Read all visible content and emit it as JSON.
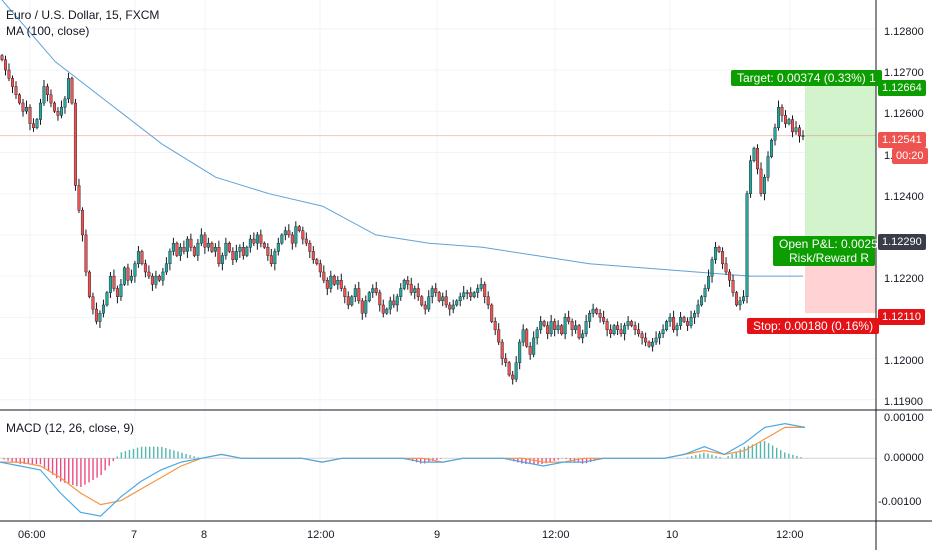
{
  "header": {
    "symbol_title": "Euro / U.S. Dollar, 15, FXCM",
    "ma_label": "MA (100, close)"
  },
  "macd": {
    "label": "MACD (12, 26, close, 9)",
    "yticks": [
      "0.00100",
      "0.00000",
      "-0.00100"
    ]
  },
  "position": {
    "target_label": "Target: 0.00374 (0.33%) 1",
    "stop_label": "Stop: 0.00180 (0.16%)",
    "pnl_label": "Open P&L: 0.0025",
    "rr_label": "Risk/Reward R"
  },
  "price_scale": {
    "labels": [
      "1.12800",
      "1.12700",
      "1.12600",
      "1.12500",
      "1.12400",
      "1.12200",
      "1.12000",
      "1.11900"
    ],
    "tags": {
      "target": "1.12664",
      "last": "1.12541",
      "countdown": "00:20",
      "entry": "1.12290",
      "stop": "1.12110"
    }
  },
  "colors": {
    "up": "#26a69a",
    "down": "#ef5350",
    "ma": "#5fa2d6",
    "target": "#0c9e00",
    "stop": "#e41216",
    "entry": "#3a3d47",
    "macd_line": "#4aa8e8",
    "signal_line": "#f59642"
  },
  "chart_data": [
    {
      "type": "candlestick",
      "title": "Euro / U.S. Dollar, 15, FXCM",
      "x_ticks": [
        "06:00",
        "7",
        "8",
        "12:00",
        "9",
        "12:00",
        "10",
        "12:00"
      ],
      "ylim": [
        1.1188,
        1.1287
      ],
      "series_ma_name": "MA (100, close)",
      "closes": [
        1.12725,
        1.127,
        1.1268,
        1.1266,
        1.1264,
        1.1262,
        1.126,
        1.1261,
        1.1257,
        1.1256,
        1.1258,
        1.1262,
        1.1266,
        1.1264,
        1.1262,
        1.126,
        1.1259,
        1.1261,
        1.1263,
        1.1268,
        1.1262,
        1.1242,
        1.1236,
        1.123,
        1.1221,
        1.1215,
        1.1212,
        1.1209,
        1.1211,
        1.1213,
        1.1216,
        1.122,
        1.1217,
        1.1215,
        1.1218,
        1.1222,
        1.1219,
        1.122,
        1.1223,
        1.1226,
        1.1223,
        1.1221,
        1.122,
        1.1218,
        1.122,
        1.1219,
        1.1221,
        1.1223,
        1.1226,
        1.1228,
        1.1225,
        1.1227,
        1.1226,
        1.1229,
        1.1227,
        1.1225,
        1.1228,
        1.123,
        1.1227,
        1.1228,
        1.1226,
        1.1227,
        1.1223,
        1.1225,
        1.1228,
        1.1226,
        1.1224,
        1.1226,
        1.1227,
        1.1225,
        1.1227,
        1.1229,
        1.1228,
        1.123,
        1.1228,
        1.1227,
        1.1225,
        1.1223,
        1.1226,
        1.1228,
        1.123,
        1.1231,
        1.123,
        1.1228,
        1.1232,
        1.1231,
        1.1229,
        1.1228,
        1.1226,
        1.1224,
        1.1223,
        1.1221,
        1.1219,
        1.1217,
        1.122,
        1.1218,
        1.1219,
        1.1217,
        1.1215,
        1.1213,
        1.1215,
        1.1217,
        1.1214,
        1.1211,
        1.1214,
        1.1216,
        1.1217,
        1.1216,
        1.1213,
        1.1211,
        1.1212,
        1.1214,
        1.1213,
        1.1215,
        1.1217,
        1.1219,
        1.1218,
        1.1216,
        1.1217,
        1.1215,
        1.1213,
        1.1212,
        1.1215,
        1.1217,
        1.1216,
        1.1214,
        1.1215,
        1.1213,
        1.1212,
        1.1213,
        1.1214,
        1.1215,
        1.1216,
        1.1216,
        1.1215,
        1.1216,
        1.1217,
        1.1218,
        1.1215,
        1.1213,
        1.1209,
        1.1207,
        1.1204,
        1.12,
        1.1199,
        1.1196,
        1.1195,
        1.1199,
        1.1204,
        1.1207,
        1.1203,
        1.1201,
        1.1205,
        1.1207,
        1.1209,
        1.1208,
        1.1206,
        1.1209,
        1.1207,
        1.1208,
        1.1206,
        1.121,
        1.1209,
        1.1207,
        1.1208,
        1.1205,
        1.1206,
        1.1209,
        1.1211,
        1.1212,
        1.1211,
        1.121,
        1.1209,
        1.1207,
        1.1206,
        1.1208,
        1.1207,
        1.1206,
        1.1208,
        1.1209,
        1.1208,
        1.1207,
        1.1206,
        1.1205,
        1.1204,
        1.1203,
        1.1204,
        1.1205,
        1.1206,
        1.1207,
        1.1209,
        1.121,
        1.1207,
        1.1208,
        1.121,
        1.1209,
        1.1208,
        1.121,
        1.1211,
        1.1213,
        1.1215,
        1.1217,
        1.122,
        1.1224,
        1.1227,
        1.1226,
        1.1223,
        1.1221,
        1.1219,
        1.1216,
        1.1213,
        1.1214,
        1.1215,
        1.124,
        1.1248,
        1.1251,
        1.1246,
        1.124,
        1.1244,
        1.1249,
        1.1253,
        1.1256,
        1.1261,
        1.1259,
        1.1257,
        1.1258,
        1.1255,
        1.1256,
        1.1254,
        1.12541
      ],
      "ma100": [
        1.1287,
        1.1272,
        1.1262,
        1.1252,
        1.1244,
        1.124,
        1.1237,
        1.123,
        1.1228,
        1.1227,
        1.1225,
        1.1223,
        1.1222,
        1.1221,
        1.122,
        1.122
      ],
      "levels": {
        "target": 1.12664,
        "last": 1.12541,
        "entry": 1.1229,
        "stop": 1.1211
      }
    },
    {
      "type": "bar",
      "title": "MACD (12, 26, close, 9)",
      "ylim": [
        -0.0016,
        0.0012
      ],
      "series": [
        {
          "name": "MACD",
          "values": [
            -0.0001,
            -0.0002,
            -0.0003,
            -0.0009,
            -0.0014,
            -0.0015,
            -0.001,
            -0.0006,
            -0.0003,
            -0.0001,
            0.0,
            0.0001,
            0.0,
            0.0,
            0.0,
            0.0,
            -0.0001,
            0.0,
            0.0,
            0.0,
            0.0,
            -0.0001,
            -0.0001,
            0.0,
            0.0,
            0.0,
            -0.0001,
            -0.0002,
            -0.0001,
            -0.0001,
            0.0,
            0.0,
            0.0,
            0.0,
            0.0001,
            0.0003,
            0.0001,
            0.0004,
            0.0008,
            0.0009,
            0.0008
          ]
        },
        {
          "name": "Signal",
          "values": [
            -0.0001,
            -0.0001,
            -0.0002,
            -0.0005,
            -0.0009,
            -0.0012,
            -0.0011,
            -0.0008,
            -0.0005,
            -0.0002,
            0.0,
            0.0001,
            0.0,
            0.0,
            0.0,
            0.0,
            -0.0001,
            0.0,
            0.0,
            0.0,
            0.0,
            0.0,
            -0.0001,
            0.0,
            0.0,
            0.0,
            0.0,
            -0.0001,
            -0.0001,
            0.0,
            0.0,
            0.0,
            0.0,
            0.0,
            0.0001,
            0.0002,
            0.0001,
            0.0002,
            0.0005,
            0.0008,
            0.0008
          ]
        }
      ]
    }
  ]
}
